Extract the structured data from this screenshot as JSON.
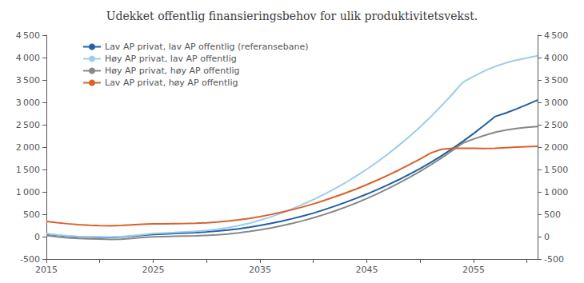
{
  "chart_data": {
    "type": "line",
    "title": "Udekket offentlig finansieringsbehov for ulik produktivitetsvekst.",
    "x": [
      2015,
      2016,
      2017,
      2018,
      2019,
      2020,
      2021,
      2022,
      2023,
      2024,
      2025,
      2026,
      2027,
      2028,
      2029,
      2030,
      2031,
      2032,
      2033,
      2034,
      2035,
      2036,
      2037,
      2038,
      2039,
      2040,
      2041,
      2042,
      2043,
      2044,
      2045,
      2046,
      2047,
      2048,
      2049,
      2050,
      2051,
      2052,
      2053,
      2054,
      2055,
      2056,
      2057,
      2058,
      2059,
      2060,
      2061
    ],
    "xlim": [
      2015,
      2061
    ],
    "xticks": [
      2015,
      {
        "value": 2020,
        "label": ""
      },
      2025,
      {
        "value": 2030,
        "label": ""
      },
      2035,
      {
        "value": 2040,
        "label": ""
      },
      2045,
      {
        "value": 2050,
        "label": ""
      },
      2055,
      {
        "value": 2060,
        "label": ""
      }
    ],
    "ylim": [
      -500,
      4500
    ],
    "yticks": [
      -500,
      0,
      500,
      {
        "value": 1000,
        "label": "1 000"
      },
      {
        "value": 1500,
        "label": "1 500"
      },
      {
        "value": 2000,
        "label": "2 000"
      },
      {
        "value": 2500,
        "label": "2 500"
      },
      {
        "value": 3000,
        "label": "3 000"
      },
      {
        "value": 3500,
        "label": "3 500"
      },
      {
        "value": 4000,
        "label": "4 000"
      },
      {
        "value": 4500,
        "label": "4 500"
      }
    ],
    "y2lim": [
      -500,
      4500
    ],
    "y2ticks": [
      -500,
      0,
      500,
      {
        "value": 1000,
        "label": "1 000"
      },
      {
        "value": 1500,
        "label": "1 500"
      },
      {
        "value": 2000,
        "label": "2 000"
      },
      {
        "value": 2500,
        "label": "2 500"
      },
      {
        "value": 3000,
        "label": "3 000"
      },
      {
        "value": 3500,
        "label": "3 500"
      },
      {
        "value": 4000,
        "label": "4 000"
      },
      {
        "value": 4500,
        "label": "4 500"
      }
    ],
    "grid": false,
    "legend": "upper left",
    "series": [
      {
        "name": "Lav AP privat, lav AP offentlig (referansebane)",
        "color": "#1f5fa6",
        "values": [
          55,
          30,
          10,
          -5,
          -10,
          -15,
          -20,
          -10,
          10,
          30,
          50,
          60,
          70,
          80,
          90,
          105,
          125,
          148,
          175,
          210,
          250,
          295,
          345,
          400,
          460,
          525,
          600,
          680,
          765,
          855,
          950,
          1050,
          1158,
          1272,
          1393,
          1522,
          1660,
          1807,
          1963,
          2128,
          2302,
          2486,
          2680,
          2760,
          2850,
          2950,
          3050
        ]
      },
      {
        "name": "Høy AP privat, lav AP offentlig",
        "color": "#9fcce8",
        "values": [
          65,
          40,
          20,
          5,
          0,
          -5,
          -10,
          0,
          20,
          45,
          70,
          82,
          94,
          108,
          122,
          140,
          165,
          200,
          245,
          300,
          365,
          440,
          525,
          618,
          720,
          828,
          945,
          1070,
          1205,
          1350,
          1505,
          1670,
          1848,
          2038,
          2238,
          2452,
          2680,
          2922,
          3178,
          3448,
          3580,
          3700,
          3800,
          3878,
          3942,
          3990,
          4040
        ]
      },
      {
        "name": "Høy AP privat, høy AP offentlig",
        "color": "#888888",
        "values": [
          25,
          -5,
          -25,
          -40,
          -50,
          -55,
          -62,
          -58,
          -40,
          -20,
          -5,
          2,
          8,
          14,
          20,
          28,
          42,
          60,
          85,
          115,
          150,
          193,
          240,
          295,
          355,
          420,
          493,
          572,
          658,
          750,
          850,
          957,
          1072,
          1193,
          1322,
          1458,
          1603,
          1757,
          1920,
          2090,
          2180,
          2260,
          2330,
          2380,
          2415,
          2440,
          2460
        ]
      },
      {
        "name": "Lav AP privat, høy AP offentlig",
        "color": "#d9622b",
        "values": [
          340,
          312,
          288,
          268,
          255,
          245,
          240,
          248,
          262,
          276,
          285,
          287,
          290,
          293,
          298,
          308,
          325,
          348,
          375,
          408,
          447,
          493,
          545,
          600,
          663,
          730,
          808,
          888,
          973,
          1063,
          1160,
          1263,
          1372,
          1487,
          1608,
          1735,
          1868,
          1950,
          1975,
          1975,
          1972,
          1968,
          1972,
          1985,
          1998,
          2010,
          2020
        ]
      }
    ]
  }
}
